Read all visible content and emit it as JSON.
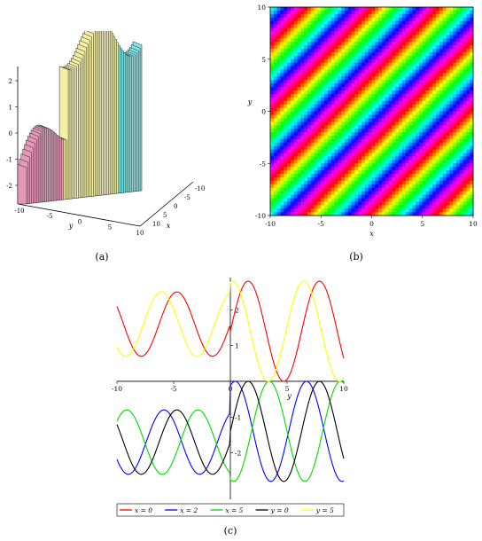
{
  "captions": {
    "a": "(a)",
    "b": "(b)",
    "c": "(c)"
  },
  "chart_data": [
    {
      "type": "surface3d",
      "panel": "a",
      "xlabel": "x",
      "ylabel": "y",
      "x_ticks": [
        "-10",
        "-5",
        "0",
        "5",
        "10"
      ],
      "y_ticks": [
        "-10",
        "-5",
        "0",
        "5",
        "10"
      ],
      "z_ticks": [
        "2",
        "1",
        "0",
        "-1",
        "-2"
      ],
      "z_range": [
        -2.5,
        2.5
      ],
      "colors": [
        "#e39ab8",
        "#f4f0a6",
        "#7fe6e6"
      ]
    },
    {
      "type": "heatmap",
      "panel": "b",
      "xlabel": "x",
      "ylabel": "y",
      "x_ticks": [
        "-10",
        "-5",
        "0",
        "5",
        "10"
      ],
      "y_ticks": [
        "10",
        "5",
        "0",
        "-5",
        "-10"
      ],
      "xlim": [
        -10,
        10
      ],
      "ylim": [
        -10,
        10
      ],
      "colors": [
        "#ff0000",
        "#ffff00",
        "#00ff00",
        "#00ffff",
        "#0000ff",
        "#ff00ff"
      ]
    },
    {
      "type": "line",
      "panel": "c",
      "xlabel": "y",
      "xlim": [
        -10,
        10
      ],
      "ylim": [
        -3.3,
        2.9
      ],
      "x_ticks": [
        "-10",
        "-5",
        "0",
        "5",
        "10"
      ],
      "y_ticks": [
        "2",
        "1",
        "-1",
        "-2"
      ],
      "series": [
        {
          "name": "x = 0",
          "color": "#ff0000",
          "amplitude": 2.8,
          "k": 1.0,
          "phase": 0.0
        },
        {
          "name": "x = 2",
          "color": "#0000ff",
          "amplitude": 2.8,
          "k": 1.0,
          "phase": 2.0
        },
        {
          "name": "x = 5",
          "color": "#00dd00",
          "amplitude": 2.8,
          "k": 1.0,
          "phase": 5.0
        },
        {
          "name": "y = 0",
          "color": "#000000",
          "amplitude": 2.8,
          "k": 1.0,
          "phase": 3.1416
        },
        {
          "name": "y = 5",
          "color": "#ffff00",
          "amplitude": 2.8,
          "k": 1.0,
          "phase": 4.9
        }
      ]
    }
  ]
}
